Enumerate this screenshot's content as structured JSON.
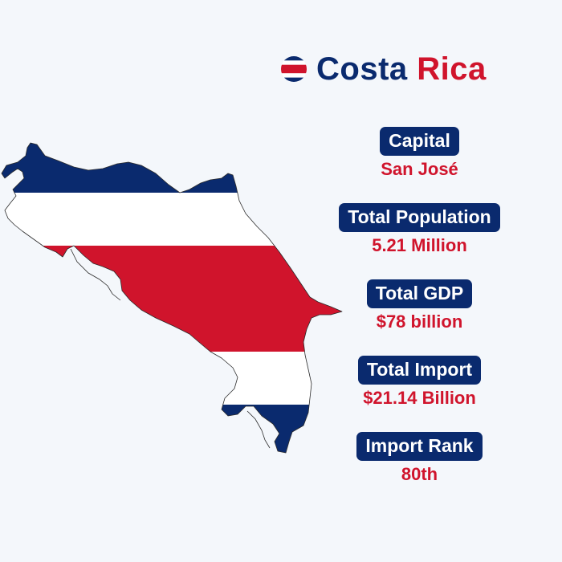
{
  "header": {
    "title_word_1": "Costa",
    "title_word_2": "Rica",
    "flag_icon": "costa-rica-flag-icon"
  },
  "map": {
    "icon": "costa-rica-map-flag-icon"
  },
  "colors": {
    "navy": "#0a2a6e",
    "red": "#d0142c",
    "background": "#f4f7fb"
  },
  "stats": [
    {
      "label": "Capital",
      "value": "San José"
    },
    {
      "label": "Total Population",
      "value": "5.21 Million"
    },
    {
      "label": "Total GDP",
      "value": "$78 billion"
    },
    {
      "label": "Total Import",
      "value": "$21.14 Billion"
    },
    {
      "label": "Import Rank",
      "value": "80th"
    }
  ]
}
